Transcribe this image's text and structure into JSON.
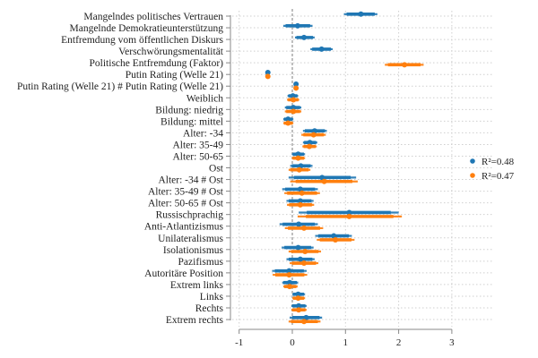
{
  "chart_data": {
    "type": "coefficient-plot",
    "title": "",
    "xlabel": "",
    "ylabel": "",
    "xlim": [
      -1,
      3
    ],
    "xticks": [
      "-1",
      "0",
      "1",
      "2",
      "3"
    ],
    "xtick_values": [
      -1,
      0,
      1,
      2,
      3
    ],
    "reference_line": 0,
    "grid": true,
    "legend_position": "right",
    "categories": [
      "Mangelndes politisches Vertrauen",
      "Mangelnde Demokratieunterstützung",
      "Entfremdung vom öffentlichen Diskurs",
      "Verschwörungsmentalität",
      "Politische Entfremdung (Faktor)",
      "Putin Rating (Welle 21)",
      "Putin Rating (Welle 21) # Putin Rating (Welle 21)",
      "Weiblich",
      "Bildung: niedrig",
      "Bildung: mittel",
      "Alter: -34",
      "Alter: 35-49",
      "Alter: 50-65",
      "Ost",
      "Alter: -34 # Ost",
      "Alter: 35-49 # Ost",
      "Alter: 50-65 # Ost",
      "Russischprachig",
      "Anti-Atlantizismus",
      "Unilateralismus",
      "Isolationismus",
      "Pazifismus",
      "Autoritäre Position",
      "Extrem links",
      "Links",
      "Rechts",
      "Extrem rechts"
    ],
    "series": [
      {
        "name": "R²=0.48",
        "color": "#1f77b4",
        "estimates": [
          1.29,
          0.1,
          0.22,
          0.55,
          null,
          -0.46,
          0.07,
          0.01,
          0.02,
          -0.08,
          0.42,
          0.33,
          0.11,
          0.16,
          0.56,
          0.15,
          0.15,
          1.07,
          0.12,
          0.78,
          0.11,
          0.15,
          -0.06,
          -0.05,
          0.11,
          0.12,
          0.26
        ],
        "ci_low": [
          0.97,
          -0.17,
          0.05,
          0.34,
          null,
          -0.48,
          0.06,
          -0.09,
          -0.14,
          -0.17,
          0.2,
          0.2,
          -0.01,
          -0.04,
          -0.07,
          -0.19,
          -0.11,
          0.12,
          -0.24,
          0.43,
          -0.2,
          -0.11,
          -0.38,
          -0.19,
          0.0,
          -0.02,
          -0.05
        ],
        "ci_high": [
          1.6,
          0.38,
          0.42,
          0.76,
          null,
          -0.44,
          0.08,
          0.11,
          0.17,
          0.02,
          0.65,
          0.47,
          0.24,
          0.38,
          1.2,
          0.48,
          0.4,
          2.0,
          0.48,
          1.12,
          0.4,
          0.42,
          0.27,
          0.11,
          0.24,
          0.27,
          0.56
        ]
      },
      {
        "name": "R²=0.47",
        "color": "#ff7f0e",
        "estimates": [
          null,
          null,
          null,
          null,
          2.11,
          -0.46,
          0.07,
          0.02,
          0.02,
          -0.08,
          0.4,
          0.32,
          0.11,
          0.13,
          0.6,
          0.18,
          0.15,
          1.07,
          0.22,
          0.81,
          0.24,
          0.22,
          -0.06,
          -0.05,
          0.11,
          0.12,
          0.22
        ],
        "ci_low": [
          null,
          null,
          null,
          null,
          1.74,
          -0.48,
          0.06,
          -0.1,
          -0.14,
          -0.17,
          0.17,
          0.19,
          -0.01,
          -0.07,
          -0.04,
          -0.15,
          -0.1,
          0.1,
          -0.14,
          0.46,
          -0.07,
          -0.05,
          -0.37,
          -0.17,
          0.0,
          -0.02,
          -0.07
        ],
        "ci_high": [
          null,
          null,
          null,
          null,
          2.47,
          -0.44,
          0.08,
          0.13,
          0.17,
          0.02,
          0.63,
          0.46,
          0.24,
          0.34,
          1.23,
          0.52,
          0.41,
          2.06,
          0.58,
          1.17,
          0.54,
          0.49,
          0.28,
          0.1,
          0.24,
          0.27,
          0.53
        ]
      }
    ]
  }
}
